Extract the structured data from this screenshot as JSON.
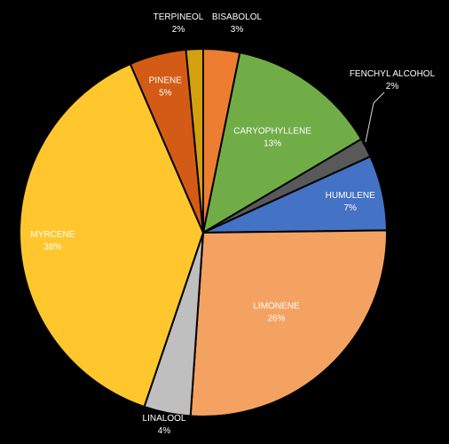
{
  "chart_data": {
    "type": "pie",
    "title": "",
    "start_angle_deg": 0,
    "direction": "clockwise",
    "slices": [
      {
        "label": "BISABOLOL",
        "value": 3.2,
        "percent_label": "3%",
        "color": "#ED7D31",
        "label_color": "#ffffff",
        "label_inside": false
      },
      {
        "label": "CARYOPHYLLENE",
        "value": 13.3,
        "percent_label": "13%",
        "color": "#70AD47",
        "label_color": "#ffffff",
        "label_inside": true
      },
      {
        "label": "FENCHYL ALCOHOL",
        "value": 1.7,
        "percent_label": "2%",
        "color": "#595959",
        "label_color": "#ffffff",
        "label_inside": false
      },
      {
        "label": "HUMULENE",
        "value": 6.6,
        "percent_label": "7%",
        "color": "#4472C4",
        "label_color": "#ffffff",
        "label_inside": true
      },
      {
        "label": "LIMONENE",
        "value": 26.3,
        "percent_label": "26%",
        "color": "#F4A261",
        "label_color": "#ffffff",
        "label_inside": true
      },
      {
        "label": "LINALOOL",
        "value": 4.1,
        "percent_label": "4%",
        "color": "#BFBFBF",
        "label_color": "#ffffff",
        "label_inside": false
      },
      {
        "label": "MYRCENE",
        "value": 38.3,
        "percent_label": "38%",
        "color": "#FFC62E",
        "label_color": "#ffffff",
        "label_inside": true
      },
      {
        "label": "PINENE",
        "value": 5.0,
        "percent_label": "5%",
        "color": "#D35B15",
        "label_color": "#ffffff",
        "label_inside": true
      },
      {
        "label": "TERPINEOL",
        "value": 1.5,
        "percent_label": "2%",
        "color": "#D3A010",
        "label_color": "#ffffff",
        "label_inside": false
      }
    ]
  }
}
